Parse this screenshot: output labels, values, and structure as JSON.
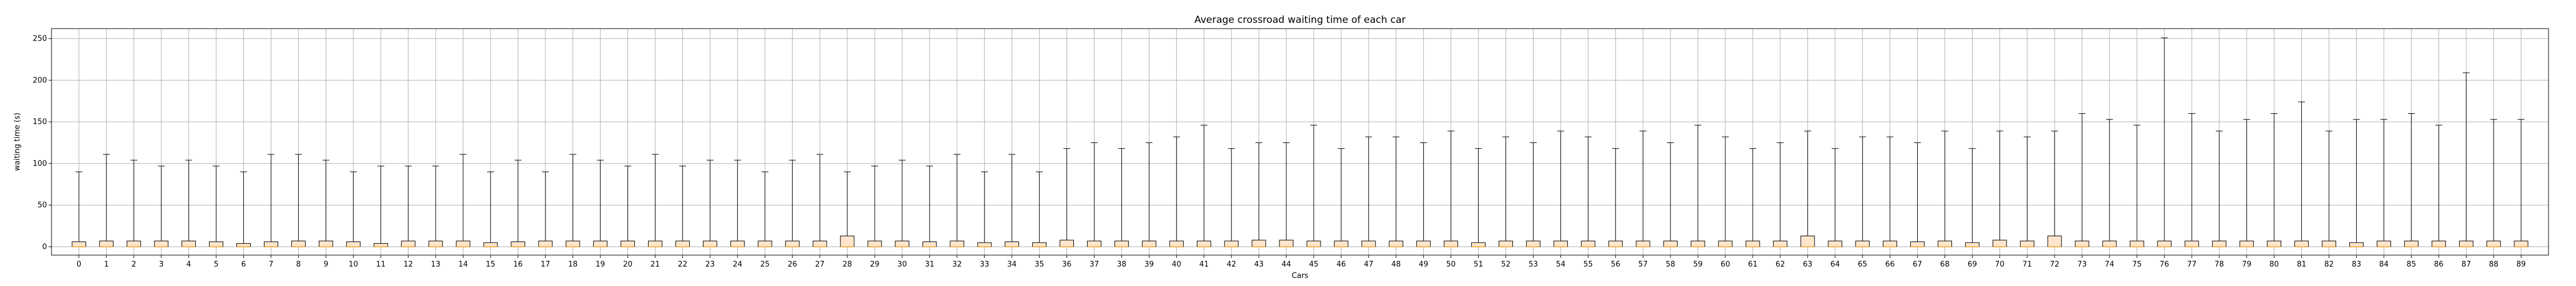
{
  "chart_data": {
    "type": "box",
    "title": "Average crossroad waiting time of each car",
    "xlabel": "Cars",
    "ylabel": "waiting time (s)",
    "ylim": [
      -10,
      262
    ],
    "yticks": [
      0,
      50,
      100,
      150,
      200,
      250
    ],
    "grid": true,
    "colors": {
      "box_fill": "#ffe5cc",
      "box_edge": "#000000",
      "median": "#f5a623",
      "grid": "#b0b0b0"
    },
    "categories": [
      "0",
      "1",
      "2",
      "3",
      "4",
      "5",
      "6",
      "7",
      "8",
      "9",
      "10",
      "11",
      "12",
      "13",
      "14",
      "15",
      "16",
      "17",
      "18",
      "19",
      "20",
      "21",
      "22",
      "23",
      "24",
      "25",
      "26",
      "27",
      "28",
      "29",
      "30",
      "31",
      "32",
      "33",
      "34",
      "35",
      "36",
      "37",
      "38",
      "39",
      "40",
      "41",
      "42",
      "43",
      "44",
      "45",
      "46",
      "47",
      "48",
      "49",
      "50",
      "51",
      "52",
      "53",
      "54",
      "55",
      "56",
      "57",
      "58",
      "59",
      "60",
      "61",
      "62",
      "63",
      "64",
      "65",
      "66",
      "67",
      "68",
      "69",
      "70",
      "71",
      "72",
      "73",
      "74",
      "75",
      "76",
      "77",
      "78",
      "79",
      "80",
      "81",
      "82",
      "83",
      "84",
      "85",
      "86",
      "87",
      "88",
      "89"
    ],
    "whisker_max": [
      90,
      111,
      104,
      97,
      104,
      97,
      90,
      111,
      111,
      104,
      90,
      97,
      97,
      97,
      111,
      90,
      104,
      90,
      111,
      104,
      97,
      111,
      97,
      104,
      104,
      90,
      104,
      111,
      90,
      97,
      104,
      97,
      111,
      90,
      111,
      90,
      118,
      125,
      118,
      125,
      132,
      146,
      118,
      125,
      125,
      146,
      118,
      132,
      132,
      125,
      139,
      118,
      132,
      125,
      139,
      132,
      118,
      139,
      125,
      146,
      132,
      118,
      125,
      139,
      118,
      132,
      132,
      125,
      139,
      118,
      139,
      132,
      139,
      160,
      153,
      146,
      251,
      160,
      139,
      153,
      160,
      174,
      139,
      153,
      153,
      160,
      146,
      209,
      153,
      153
    ],
    "q1": [
      0,
      0,
      0,
      0,
      0,
      0,
      0,
      0,
      0,
      0,
      0,
      0,
      0,
      0,
      0,
      0,
      0,
      0,
      0,
      0,
      0,
      0,
      0,
      0,
      0,
      0,
      0,
      0,
      0,
      0,
      0,
      0,
      0,
      0,
      0,
      0,
      0,
      0,
      0,
      0,
      0,
      0,
      0,
      0,
      0,
      0,
      0,
      0,
      0,
      0,
      0,
      0,
      0,
      0,
      0,
      0,
      0,
      0,
      0,
      0,
      0,
      0,
      0,
      0,
      0,
      0,
      0,
      0,
      0,
      0,
      0,
      0,
      0,
      0,
      0,
      0,
      0,
      0,
      0,
      0,
      0,
      0,
      0,
      0,
      0,
      0,
      0,
      0,
      0,
      0
    ],
    "q3": [
      6,
      7,
      7,
      7,
      7,
      6,
      4,
      6,
      7,
      7,
      6,
      4,
      7,
      7,
      7,
      5,
      6,
      7,
      7,
      7,
      7,
      7,
      7,
      7,
      7,
      7,
      7,
      7,
      13,
      7,
      7,
      6,
      7,
      5,
      6,
      5,
      8,
      7,
      7,
      7,
      7,
      7,
      7,
      8,
      8,
      7,
      7,
      7,
      7,
      7,
      7,
      5,
      7,
      7,
      7,
      7,
      7,
      7,
      7,
      7,
      7,
      7,
      7,
      13,
      7,
      7,
      7,
      6,
      7,
      5,
      8,
      7,
      13,
      7,
      7,
      7,
      7,
      7,
      7,
      7,
      7,
      7,
      7,
      5,
      7,
      7,
      7,
      7,
      7,
      7
    ],
    "median": [
      0,
      0,
      0,
      0,
      0,
      0,
      0,
      0,
      0,
      0,
      0,
      0,
      0,
      0,
      0,
      0,
      0,
      0,
      0,
      0,
      0,
      0,
      0,
      0,
      0,
      0,
      0,
      0,
      0,
      0,
      0,
      0,
      0,
      0,
      0,
      0,
      0,
      0,
      0,
      0,
      0,
      0,
      0,
      0,
      0,
      0,
      0,
      0,
      0,
      0,
      0,
      0,
      0,
      0,
      0,
      0,
      0,
      0,
      0,
      0,
      0,
      0,
      0,
      0,
      0,
      0,
      0,
      0,
      0,
      0,
      0,
      0,
      0,
      0,
      0,
      0,
      0,
      0,
      0,
      0,
      0,
      0,
      0,
      0,
      0,
      0,
      0,
      0,
      0,
      0
    ],
    "whisker_min": [
      0,
      0,
      0,
      0,
      0,
      0,
      0,
      0,
      0,
      0,
      0,
      0,
      0,
      0,
      0,
      0,
      0,
      0,
      0,
      0,
      0,
      0,
      0,
      0,
      0,
      0,
      0,
      0,
      0,
      0,
      0,
      0,
      0,
      0,
      0,
      0,
      0,
      0,
      0,
      0,
      0,
      0,
      0,
      0,
      0,
      0,
      0,
      0,
      0,
      0,
      0,
      0,
      0,
      0,
      0,
      0,
      0,
      0,
      0,
      0,
      0,
      0,
      0,
      0,
      0,
      0,
      0,
      0,
      0,
      0,
      0,
      0,
      0,
      0,
      0,
      0,
      0,
      0,
      0,
      0,
      0,
      0,
      0,
      0,
      0,
      0,
      0,
      0,
      0,
      0
    ]
  }
}
